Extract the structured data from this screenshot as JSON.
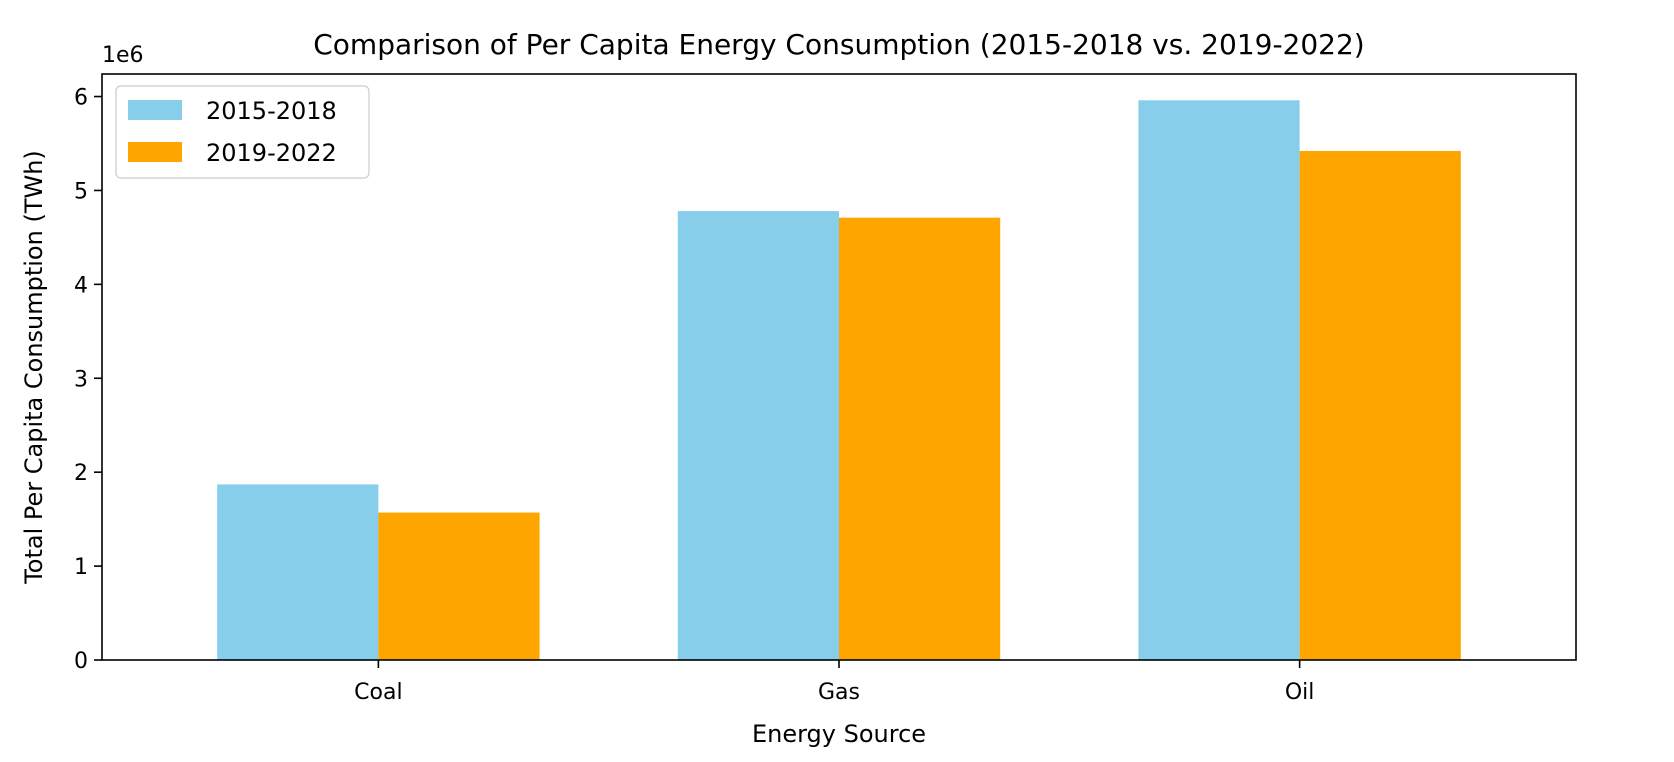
{
  "chart_data": {
    "type": "bar",
    "title": "Comparison of Per Capita Energy Consumption (2015-2018 vs. 2019-2022)",
    "xlabel": "Energy Source",
    "ylabel": "Total Per Capita Consumption (TWh)",
    "y_scale_label": "1e6",
    "categories": [
      "Coal",
      "Gas",
      "Oil"
    ],
    "series": [
      {
        "name": "2015-2018",
        "color": "#87CEEB",
        "values": [
          1870000,
          4780000,
          5960000
        ]
      },
      {
        "name": "2019-2022",
        "color": "#FFA500",
        "values": [
          1570000,
          4710000,
          5420000
        ]
      }
    ],
    "ylim": [
      0,
      6240000
    ],
    "yticks": [
      0,
      1,
      2,
      3,
      4,
      5,
      6
    ],
    "ytick_multiplier": 1000000,
    "grid": false,
    "legend_position": "top-left"
  }
}
